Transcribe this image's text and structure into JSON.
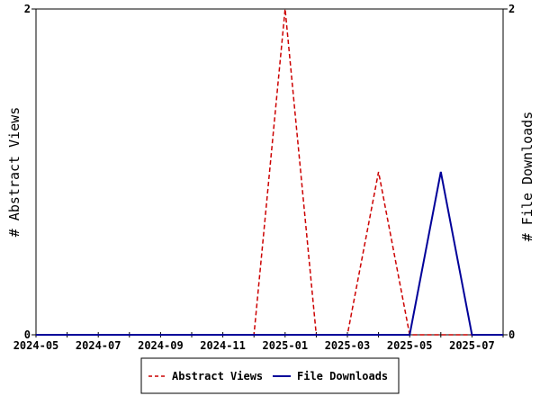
{
  "chart_data": {
    "type": "line",
    "x": [
      "2024-05",
      "2024-06",
      "2024-07",
      "2024-08",
      "2024-09",
      "2024-10",
      "2024-11",
      "2024-12",
      "2025-01",
      "2025-02",
      "2025-03",
      "2025-04",
      "2025-05",
      "2025-06",
      "2025-07",
      "2025-08"
    ],
    "x_tick_labels": [
      "2024-05",
      "2024-07",
      "2024-09",
      "2024-11",
      "2025-01",
      "2025-03",
      "2025-05",
      "2025-07"
    ],
    "series": [
      {
        "name": "Abstract Views",
        "axis": "left",
        "color": "#cc0000",
        "dash": "dashed",
        "values": [
          0,
          0,
          0,
          0,
          0,
          0,
          0,
          0,
          2,
          0,
          0,
          1,
          0,
          0,
          0,
          0
        ]
      },
      {
        "name": "File Downloads",
        "axis": "right",
        "color": "#000099",
        "dash": "solid",
        "values": [
          0,
          0,
          0,
          0,
          0,
          0,
          0,
          0,
          0,
          0,
          0,
          0,
          0,
          1,
          0,
          0
        ]
      }
    ],
    "ylabel_left": "# Abstract Views",
    "ylabel_right": "# File Downloads",
    "ylim_left": [
      0,
      2
    ],
    "ylim_right": [
      0,
      2
    ],
    "y_ticks_left": [
      "0",
      "2"
    ],
    "y_ticks_right": [
      "0",
      "2"
    ],
    "grid": false,
    "legend_position": "bottom"
  }
}
